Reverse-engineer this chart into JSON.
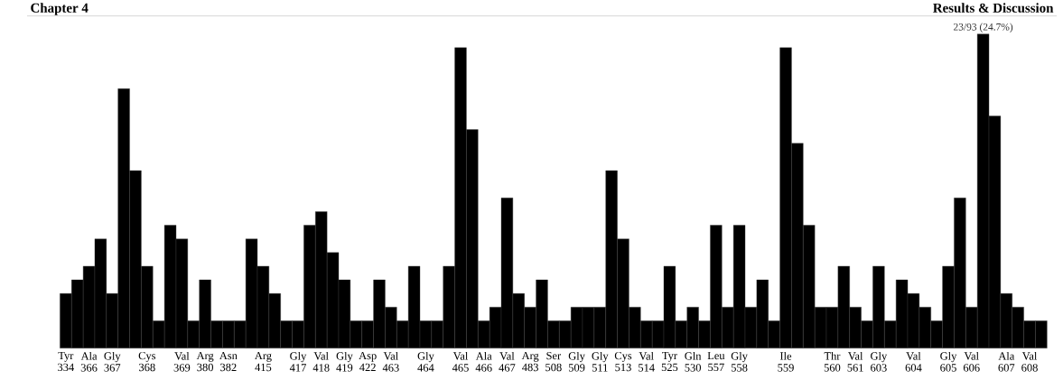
{
  "chart_data": {
    "type": "bar",
    "color": "#000000",
    "tick_labels": "x",
    "annotations": [
      "Chapter 4",
      "Results & Discussion"
    ],
    "categories": [
      "Tyr 334",
      null,
      "Ala 366",
      null,
      "Gly 367",
      null,
      null,
      "Cys 368",
      null,
      null,
      "Val 369",
      null,
      "Arg 380",
      null,
      "Asn 382",
      null,
      null,
      "Arg 415",
      null,
      null,
      "Gly 417",
      null,
      "Val 418",
      null,
      "Gly 419",
      null,
      "Asp 422",
      null,
      "Val 463",
      null,
      null,
      "Gly 464",
      null,
      null,
      "Val 465",
      null,
      "Ala 466",
      null,
      "Val 467",
      null,
      "Arg 483",
      null,
      "Ser 508",
      null,
      "Gly 509",
      null,
      "Gly 511",
      null,
      "Cys 513",
      null,
      "Val 514",
      null,
      "Tyr 525",
      null,
      "Gln 530",
      null,
      "Leu 557",
      null,
      "Gly 558",
      null,
      null,
      null,
      "Ile 559",
      null,
      null,
      null,
      "Thr 560",
      null,
      "Val 561",
      null,
      "Gly 603",
      null,
      null,
      "Val 604",
      null,
      null,
      "Gly 605",
      null,
      "Val 606",
      null,
      null,
      "Ala 607",
      null,
      "Val 608",
      null
    ],
    "values": [
      4,
      5,
      6,
      8,
      4,
      19,
      13,
      6,
      2,
      9,
      8,
      2,
      5,
      2,
      2,
      2,
      8,
      6,
      4,
      2,
      2,
      9,
      10,
      7,
      5,
      2,
      2,
      5,
      3,
      2,
      6,
      2,
      2,
      6,
      22,
      16,
      2,
      3,
      11,
      4,
      3,
      5,
      2,
      2,
      3,
      3,
      3,
      13,
      8,
      3,
      2,
      2,
      6,
      2,
      3,
      2,
      9,
      3,
      9,
      3,
      5,
      2,
      22,
      15,
      9,
      3,
      3,
      6,
      3,
      2,
      6,
      2,
      5,
      4,
      3,
      2,
      6,
      11,
      3,
      23,
      17,
      4,
      3,
      2,
      2
    ],
    "value_labels": [
      null,
      null,
      null,
      null,
      null,
      null,
      null,
      null,
      null,
      null,
      null,
      null,
      null,
      null,
      null,
      null,
      null,
      null,
      null,
      null,
      null,
      null,
      null,
      null,
      null,
      null,
      null,
      null,
      null,
      null,
      null,
      null,
      null,
      null,
      null,
      null,
      null,
      null,
      null,
      null,
      null,
      null,
      null,
      null,
      null,
      null,
      null,
      null,
      null,
      null,
      null,
      null,
      null,
      null,
      null,
      null,
      null,
      null,
      null,
      null,
      null,
      null,
      null,
      null,
      null,
      null,
      null,
      null,
      null,
      null,
      null,
      null,
      null,
      null,
      null,
      null,
      null,
      null,
      null,
      "23/93 (24.7%)",
      null,
      null,
      null,
      null,
      null
    ]
  }
}
